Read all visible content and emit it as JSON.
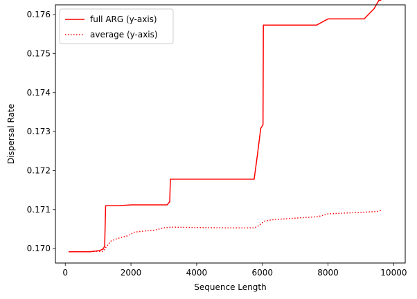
{
  "chart_data": {
    "type": "line",
    "xlabel": "Sequence Length",
    "ylabel": "Dispersal Rate",
    "xlim": [
      -300,
      10350
    ],
    "ylim": [
      0.16963,
      0.17625
    ],
    "xticks": [
      0,
      2000,
      4000,
      6000,
      8000,
      10000
    ],
    "xtick_labels": [
      "0",
      "2000",
      "4000",
      "6000",
      "8000",
      "10000"
    ],
    "yticks": [
      0.17,
      0.171,
      0.172,
      0.173,
      0.174,
      0.175,
      0.176
    ],
    "ytick_labels": [
      "0.170",
      "0.171",
      "0.172",
      "0.173",
      "0.174",
      "0.175",
      "0.176"
    ],
    "grid": false,
    "legend_position": "top-left",
    "series": [
      {
        "name": "full ARG (y-axis)",
        "color": "#ff0000",
        "style": "solid",
        "x": [
          100,
          750,
          1050,
          1150,
          1200,
          1230,
          1600,
          2000,
          2500,
          3000,
          3100,
          3180,
          3200,
          4000,
          5000,
          5750,
          5850,
          5950,
          6020,
          6030,
          6500,
          7000,
          7650,
          8000,
          8500,
          9100,
          9400,
          9550,
          9620
        ],
        "y": [
          0.16992,
          0.16992,
          0.16995,
          0.16999,
          0.17006,
          0.1711,
          0.1711,
          0.17112,
          0.17112,
          0.17112,
          0.17112,
          0.1712,
          0.17178,
          0.17178,
          0.17178,
          0.17178,
          0.1724,
          0.17308,
          0.17318,
          0.17573,
          0.17573,
          0.17573,
          0.17573,
          0.17589,
          0.17589,
          0.17589,
          0.17615,
          0.17637,
          0.17637
        ]
      },
      {
        "name": "average (y-axis)",
        "color": "#ff0000",
        "style": "dotted",
        "x": [
          100,
          750,
          1000,
          1150,
          1250,
          1400,
          1600,
          1900,
          2100,
          2400,
          2700,
          3000,
          3200,
          4000,
          5000,
          5750,
          5900,
          6050,
          6300,
          7000,
          7700,
          8000,
          8500,
          9000,
          9500,
          9620
        ],
        "y": [
          0.16992,
          0.16992,
          0.16993,
          0.16993,
          0.17005,
          0.1702,
          0.17026,
          0.17033,
          0.17042,
          0.17045,
          0.17047,
          0.17053,
          0.17055,
          0.17054,
          0.17053,
          0.17053,
          0.17059,
          0.1707,
          0.17074,
          0.17078,
          0.17082,
          0.17089,
          0.17091,
          0.17093,
          0.17095,
          0.17098
        ]
      }
    ]
  }
}
